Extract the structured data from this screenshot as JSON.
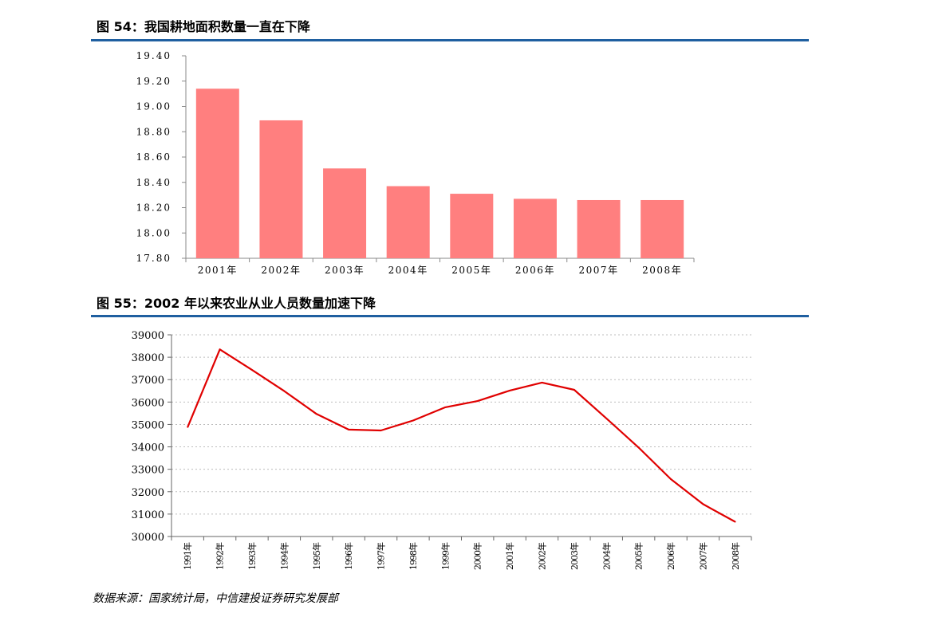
{
  "figures": [
    {
      "title": "图 54：我国耕地面积数量一直在下降"
    },
    {
      "title": "图 55：2002 年以来农业从业人员数量加速下降"
    }
  ],
  "source": "数据来源：国家统计局，中信建投证券研究发展部",
  "chart_data": [
    {
      "type": "bar",
      "title": "",
      "xlabel": "",
      "ylabel": "",
      "categories": [
        "2001年",
        "2002年",
        "2003年",
        "2004年",
        "2005年",
        "2006年",
        "2007年",
        "2008年"
      ],
      "values": [
        19.14,
        18.89,
        18.51,
        18.37,
        18.31,
        18.27,
        18.26,
        18.26
      ],
      "ylim": [
        17.8,
        19.4
      ],
      "yticks": [
        "17.80",
        "18.00",
        "18.20",
        "18.40",
        "18.60",
        "18.80",
        "19.00",
        "19.20",
        "19.40"
      ],
      "grid": false,
      "legend": "none",
      "color": "#ff7f7f"
    },
    {
      "type": "line",
      "title": "",
      "xlabel": "",
      "ylabel": "",
      "categories": [
        "1991年",
        "1992年",
        "1993年",
        "1994年",
        "1995年",
        "1996年",
        "1997年",
        "1998年",
        "1999年",
        "2000年",
        "2001年",
        "2002年",
        "2003年",
        "2004年",
        "2005年",
        "2006年",
        "2007年",
        "2008年"
      ],
      "values": [
        34876,
        38349,
        37432,
        36489,
        35468,
        34769,
        34730,
        35177,
        35768,
        36043,
        36513,
        36870,
        36546,
        35269,
        33970,
        32561,
        31444,
        30654
      ],
      "ylim": [
        30000,
        39000
      ],
      "yticks": [
        "30000",
        "31000",
        "32000",
        "33000",
        "34000",
        "35000",
        "36000",
        "37000",
        "38000",
        "39000"
      ],
      "grid": true,
      "legend": "none",
      "color": "#e00000"
    }
  ]
}
